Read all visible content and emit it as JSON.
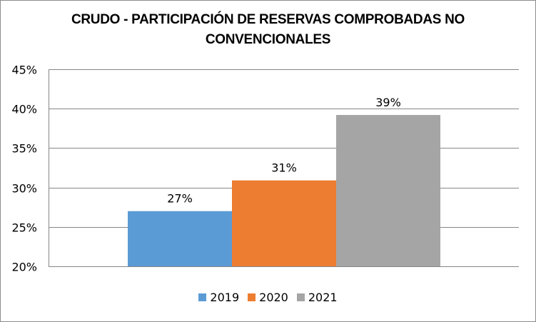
{
  "chart_data": {
    "type": "bar",
    "title_lines": [
      "CRUDO - PARTICIPACIÓN DE RESERVAS COMPROBADAS NO",
      "CONVENCIONALES"
    ],
    "title": "CRUDO - PARTICIPACIÓN DE RESERVAS COMPROBADAS NO CONVENCIONALES",
    "xlabel": "",
    "ylabel": "",
    "categories": [
      ""
    ],
    "series": [
      {
        "name": "2019",
        "values": [
          0.27
        ],
        "label": "27%",
        "color": "#5b9bd5"
      },
      {
        "name": "2020",
        "values": [
          0.309
        ],
        "label": "31%",
        "color": "#ed7d31"
      },
      {
        "name": "2021",
        "values": [
          0.392
        ],
        "label": "39%",
        "color": "#a5a5a5"
      }
    ],
    "ylim": [
      0.2,
      0.45
    ],
    "yticks": [
      0.2,
      0.25,
      0.3,
      0.35,
      0.4,
      0.45
    ],
    "ytick_labels": [
      "20%",
      "25%",
      "30%",
      "35%",
      "40%",
      "45%"
    ],
    "grid": true,
    "legend_position": "bottom",
    "gridline_color": "#868686"
  }
}
